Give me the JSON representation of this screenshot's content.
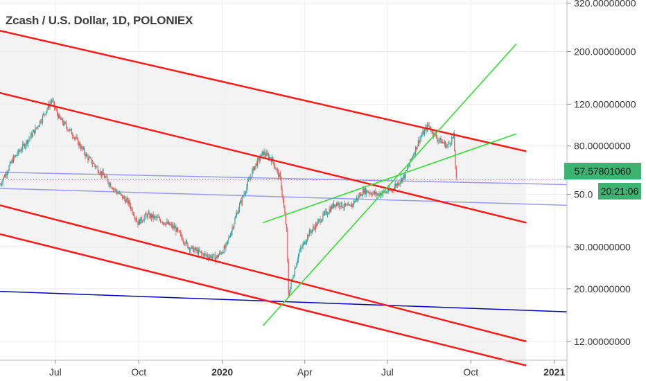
{
  "title": "Zcash / U.S. Dollar, 1D, POLONIEX",
  "colors": {
    "up": "#26a69a",
    "down": "#ef5350",
    "channel_red": "#ff1a1a",
    "channel_green": "#33dd33",
    "hline_blue": "#0000bb",
    "hline_light": "#9999ee",
    "tag_bg": "#3cb371",
    "band_fill": "#f3f3f3"
  },
  "price_tag": {
    "value": "57.57801060",
    "countdown": "20:21:06"
  },
  "chart_data": {
    "type": "candlestick",
    "symbol": "Zcash / U.S. Dollar",
    "interval": "1D",
    "exchange": "POLONIEX",
    "y_scale": "log",
    "ylim": [
      10,
      330
    ],
    "y_ticks": [
      {
        "value": 320,
        "label": "320.00000000"
      },
      {
        "value": 200,
        "label": "200.00000000"
      },
      {
        "value": 120,
        "label": "120.00000000"
      },
      {
        "value": 80,
        "label": "80.00000000"
      },
      {
        "value": 50,
        "label": "50.0"
      },
      {
        "value": 30,
        "label": "30.00000000"
      },
      {
        "value": 20,
        "label": "20.00000000"
      },
      {
        "value": 12,
        "label": "12.00000000"
      }
    ],
    "x_range": [
      "2019-05-01",
      "2021-01-15"
    ],
    "x_ticks": [
      {
        "date": "2019-07-01",
        "label": "Jul",
        "bold": false
      },
      {
        "date": "2019-10-01",
        "label": "Oct",
        "bold": false
      },
      {
        "date": "2020-01-01",
        "label": "2020",
        "bold": true
      },
      {
        "date": "2020-04-01",
        "label": "Apr",
        "bold": false
      },
      {
        "date": "2020-07-01",
        "label": "Jul",
        "bold": false
      },
      {
        "date": "2020-10-01",
        "label": "Oct",
        "bold": false
      },
      {
        "date": "2021-01-01",
        "label": "2021",
        "bold": true
      }
    ],
    "price_path": [
      [
        "2019-05-01",
        55
      ],
      [
        "2019-05-15",
        70
      ],
      [
        "2019-06-01",
        85
      ],
      [
        "2019-06-10",
        95
      ],
      [
        "2019-06-27",
        125
      ],
      [
        "2019-07-05",
        105
      ],
      [
        "2019-07-20",
        90
      ],
      [
        "2019-08-05",
        72
      ],
      [
        "2019-08-20",
        62
      ],
      [
        "2019-09-05",
        52
      ],
      [
        "2019-09-20",
        46
      ],
      [
        "2019-09-30",
        38
      ],
      [
        "2019-10-10",
        41
      ],
      [
        "2019-10-25",
        39
      ],
      [
        "2019-11-10",
        36
      ],
      [
        "2019-11-25",
        30
      ],
      [
        "2019-12-10",
        28
      ],
      [
        "2019-12-25",
        27
      ],
      [
        "2020-01-05",
        30
      ],
      [
        "2020-01-20",
        45
      ],
      [
        "2020-02-05",
        65
      ],
      [
        "2020-02-15",
        75
      ],
      [
        "2020-02-25",
        70
      ],
      [
        "2020-03-05",
        58
      ],
      [
        "2020-03-12",
        35
      ],
      [
        "2020-03-14",
        19
      ],
      [
        "2020-03-25",
        28
      ],
      [
        "2020-04-05",
        34
      ],
      [
        "2020-04-20",
        40
      ],
      [
        "2020-05-05",
        46
      ],
      [
        "2020-05-20",
        44
      ],
      [
        "2020-06-05",
        52
      ],
      [
        "2020-06-20",
        50
      ],
      [
        "2020-07-05",
        52
      ],
      [
        "2020-07-20",
        60
      ],
      [
        "2020-08-05",
        85
      ],
      [
        "2020-08-15",
        98
      ],
      [
        "2020-08-25",
        86
      ],
      [
        "2020-09-05",
        80
      ],
      [
        "2020-09-12",
        88
      ],
      [
        "2020-09-15",
        57.58
      ]
    ],
    "channel_lines": [
      {
        "color": "red",
        "from": [
          "2019-05-01",
          245
        ],
        "to": [
          "2020-12-01",
          76
        ]
      },
      {
        "color": "red",
        "from": [
          "2019-05-01",
          134
        ],
        "to": [
          "2020-12-01",
          38
        ]
      },
      {
        "color": "red",
        "from": [
          "2019-05-01",
          45
        ],
        "to": [
          "2020-12-01",
          12
        ]
      },
      {
        "color": "red",
        "from": [
          "2019-05-01",
          34
        ],
        "to": [
          "2020-12-01",
          9.5
        ]
      },
      {
        "color": "green",
        "from": [
          "2020-02-15",
          14
        ],
        "to": [
          "2020-11-20",
          215
        ]
      },
      {
        "color": "green",
        "from": [
          "2020-02-15",
          38
        ],
        "to": [
          "2020-11-20",
          90
        ]
      }
    ],
    "horizontal_lines": [
      {
        "color": "light",
        "from": [
          "2019-05-01",
          62
        ],
        "to": [
          "2021-01-15",
          55
        ]
      },
      {
        "color": "light",
        "from": [
          "2019-05-01",
          53
        ],
        "to": [
          "2021-01-15",
          45
        ]
      },
      {
        "color": "blue",
        "from": [
          "2019-05-01",
          19.5
        ],
        "to": [
          "2021-01-15",
          16
        ]
      }
    ],
    "last_price": 57.5780106,
    "countdown": "20:21:06"
  }
}
